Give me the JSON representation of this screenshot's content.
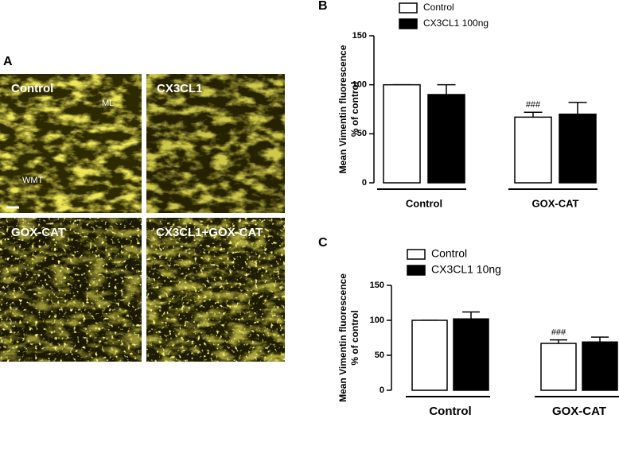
{
  "figure": {
    "panel_a": {
      "letter": "A",
      "images": [
        "Control",
        "CX3CL1",
        "GOX-CAT",
        "CX3CL1+GOX-CAT"
      ],
      "region_labels": [
        "ML",
        "WMT"
      ]
    }
  },
  "chart_data": [
    {
      "type": "bar",
      "panel_label": "B",
      "ylabel": [
        "Mean Vimentin fluorescence",
        "% of control"
      ],
      "categories": [
        "Control",
        "GOX-CAT"
      ],
      "series": [
        {
          "name": "Control",
          "color": "#ffffff",
          "values": [
            100,
            67
          ],
          "errors": [
            0,
            5
          ]
        },
        {
          "name": "CX3CL1 100ng",
          "color": "#000000",
          "values": [
            90,
            70
          ],
          "errors": [
            10,
            12
          ]
        }
      ],
      "annotation": "###",
      "ylim": [
        0,
        150
      ],
      "yticks": [
        0,
        50,
        100,
        150
      ]
    },
    {
      "type": "bar",
      "panel_label": "C",
      "ylabel": [
        "Mean Vimentin fluorescence",
        "% of control"
      ],
      "categories": [
        "Control",
        "GOX-CAT"
      ],
      "series": [
        {
          "name": "Control",
          "color": "#ffffff",
          "values": [
            100,
            67
          ],
          "errors": [
            0,
            5
          ]
        },
        {
          "name": "CX3CL1 10ng",
          "color": "#000000",
          "values": [
            102,
            69
          ],
          "errors": [
            10,
            7
          ]
        }
      ],
      "annotation": "###",
      "ylim": [
        0,
        150
      ],
      "yticks": [
        0,
        50,
        100,
        150
      ]
    }
  ]
}
